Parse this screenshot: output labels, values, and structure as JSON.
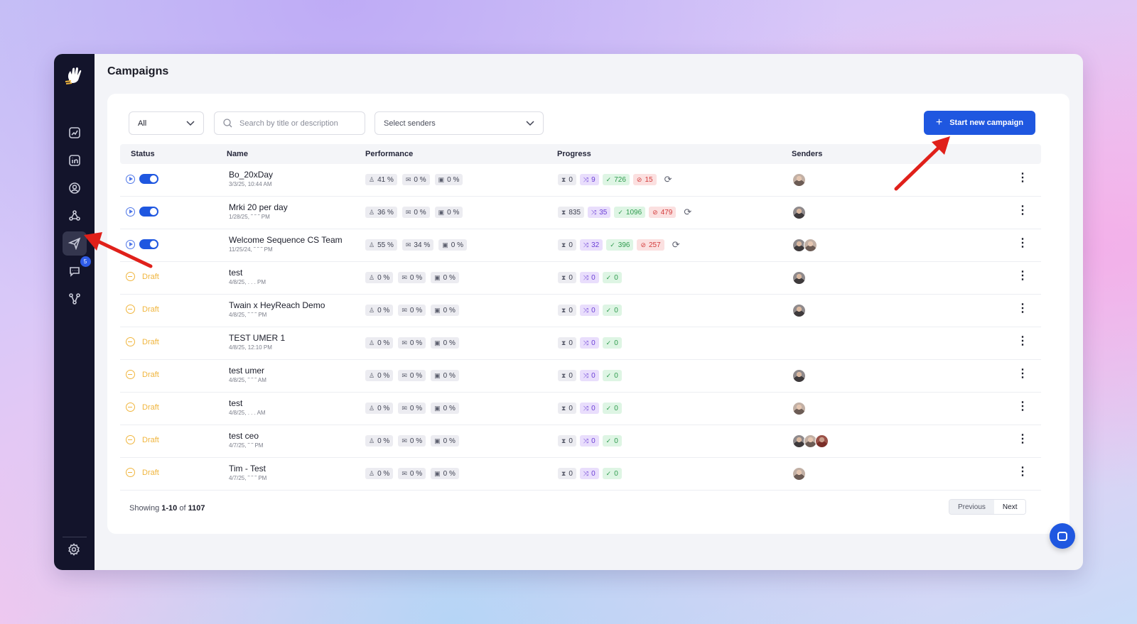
{
  "page": {
    "title": "Campaigns"
  },
  "sidebar": {
    "items": [
      {
        "icon": "analytics-icon"
      },
      {
        "icon": "linkedin-icon"
      },
      {
        "icon": "contacts-icon"
      },
      {
        "icon": "network-icon"
      },
      {
        "icon": "campaigns-send-icon",
        "active": true
      },
      {
        "icon": "inbox-chat-icon",
        "badge": "5"
      },
      {
        "icon": "integrations-icon"
      }
    ],
    "settings_icon": "gear-icon"
  },
  "filters": {
    "status_value": "All",
    "search_placeholder": "Search by title or description",
    "senders_placeholder": "Select senders"
  },
  "actions": {
    "start_label": "Start new campaign"
  },
  "table": {
    "headers": {
      "status": "Status",
      "name": "Name",
      "performance": "Performance",
      "progress": "Progress",
      "senders": "Senders"
    },
    "rows": [
      {
        "status": "active",
        "name": "Bo_20xDay",
        "date": "3/3/25, 10:44 AM",
        "perf": [
          "41 %",
          "0 %",
          "0 %"
        ],
        "prog": [
          "0",
          "9",
          "726",
          "15"
        ],
        "refresh": true,
        "senders": [
          "a1"
        ]
      },
      {
        "status": "active",
        "name": "Mrki 20 per day",
        "date": "1/28/25, ˜ ˜ ˜ PM",
        "perf": [
          "36 %",
          "0 %",
          "0 %"
        ],
        "prog": [
          "835",
          "35",
          "1096",
          "479"
        ],
        "refresh": true,
        "senders": [
          "a2"
        ]
      },
      {
        "status": "active",
        "name": "Welcome Sequence CS Team",
        "date": "11/25/24, ˜ ˜ ˜ PM",
        "perf": [
          "55 %",
          "34 %",
          "0 %"
        ],
        "prog": [
          "0",
          "32",
          "396",
          "257"
        ],
        "refresh": true,
        "senders": [
          "a2",
          "a1"
        ]
      },
      {
        "status": "draft",
        "draft_label": "Draft",
        "name": "test",
        "date": "4/8/25, . . . PM",
        "perf": [
          "0 %",
          "0 %",
          "0 %"
        ],
        "prog": [
          "0",
          "0",
          "0"
        ],
        "refresh": false,
        "senders": [
          "a2"
        ]
      },
      {
        "status": "draft",
        "draft_label": "Draft",
        "name": "Twain x HeyReach Demo",
        "date": "4/8/25, ˜ ˜ ˜ PM",
        "perf": [
          "0 %",
          "0 %",
          "0 %"
        ],
        "prog": [
          "0",
          "0",
          "0"
        ],
        "refresh": false,
        "senders": [
          "a2"
        ]
      },
      {
        "status": "draft",
        "draft_label": "Draft",
        "name": "TEST UMER 1",
        "date": "4/8/25, 12:10 PM",
        "perf": [
          "0 %",
          "0 %",
          "0 %"
        ],
        "prog": [
          "0",
          "0",
          "0"
        ],
        "refresh": false,
        "senders": []
      },
      {
        "status": "draft",
        "draft_label": "Draft",
        "name": "test umer",
        "date": "4/8/25, ˜ ˜ ˜ AM",
        "perf": [
          "0 %",
          "0 %",
          "0 %"
        ],
        "prog": [
          "0",
          "0",
          "0"
        ],
        "refresh": false,
        "senders": [
          "a2"
        ]
      },
      {
        "status": "draft",
        "draft_label": "Draft",
        "name": "test",
        "date": "4/8/25, . . . AM",
        "perf": [
          "0 %",
          "0 %",
          "0 %"
        ],
        "prog": [
          "0",
          "0",
          "0"
        ],
        "refresh": false,
        "senders": [
          "a1"
        ]
      },
      {
        "status": "draft",
        "draft_label": "Draft",
        "name": "test ceo",
        "date": "4/7/25, ˜ ˜ PM",
        "perf": [
          "0 %",
          "0 %",
          "0 %"
        ],
        "prog": [
          "0",
          "0",
          "0"
        ],
        "refresh": false,
        "senders": [
          "a2",
          "a1",
          "a3"
        ]
      },
      {
        "status": "draft",
        "draft_label": "Draft",
        "name": "Tim - Test",
        "date": "4/7/25, ˜ ˜ ˜ PM",
        "perf": [
          "0 %",
          "0 %",
          "0 %"
        ],
        "prog": [
          "0",
          "0",
          "0"
        ],
        "refresh": false,
        "senders": [
          "a1"
        ]
      }
    ]
  },
  "pagination": {
    "showing_prefix": "Showing",
    "range": "1-10",
    "of_word": "of",
    "total": "1107",
    "previous_label": "Previous",
    "next_label": "Next"
  },
  "colors": {
    "accent": "#1f57e0",
    "draft": "#f0b53d",
    "sidebar": "#13142b"
  }
}
